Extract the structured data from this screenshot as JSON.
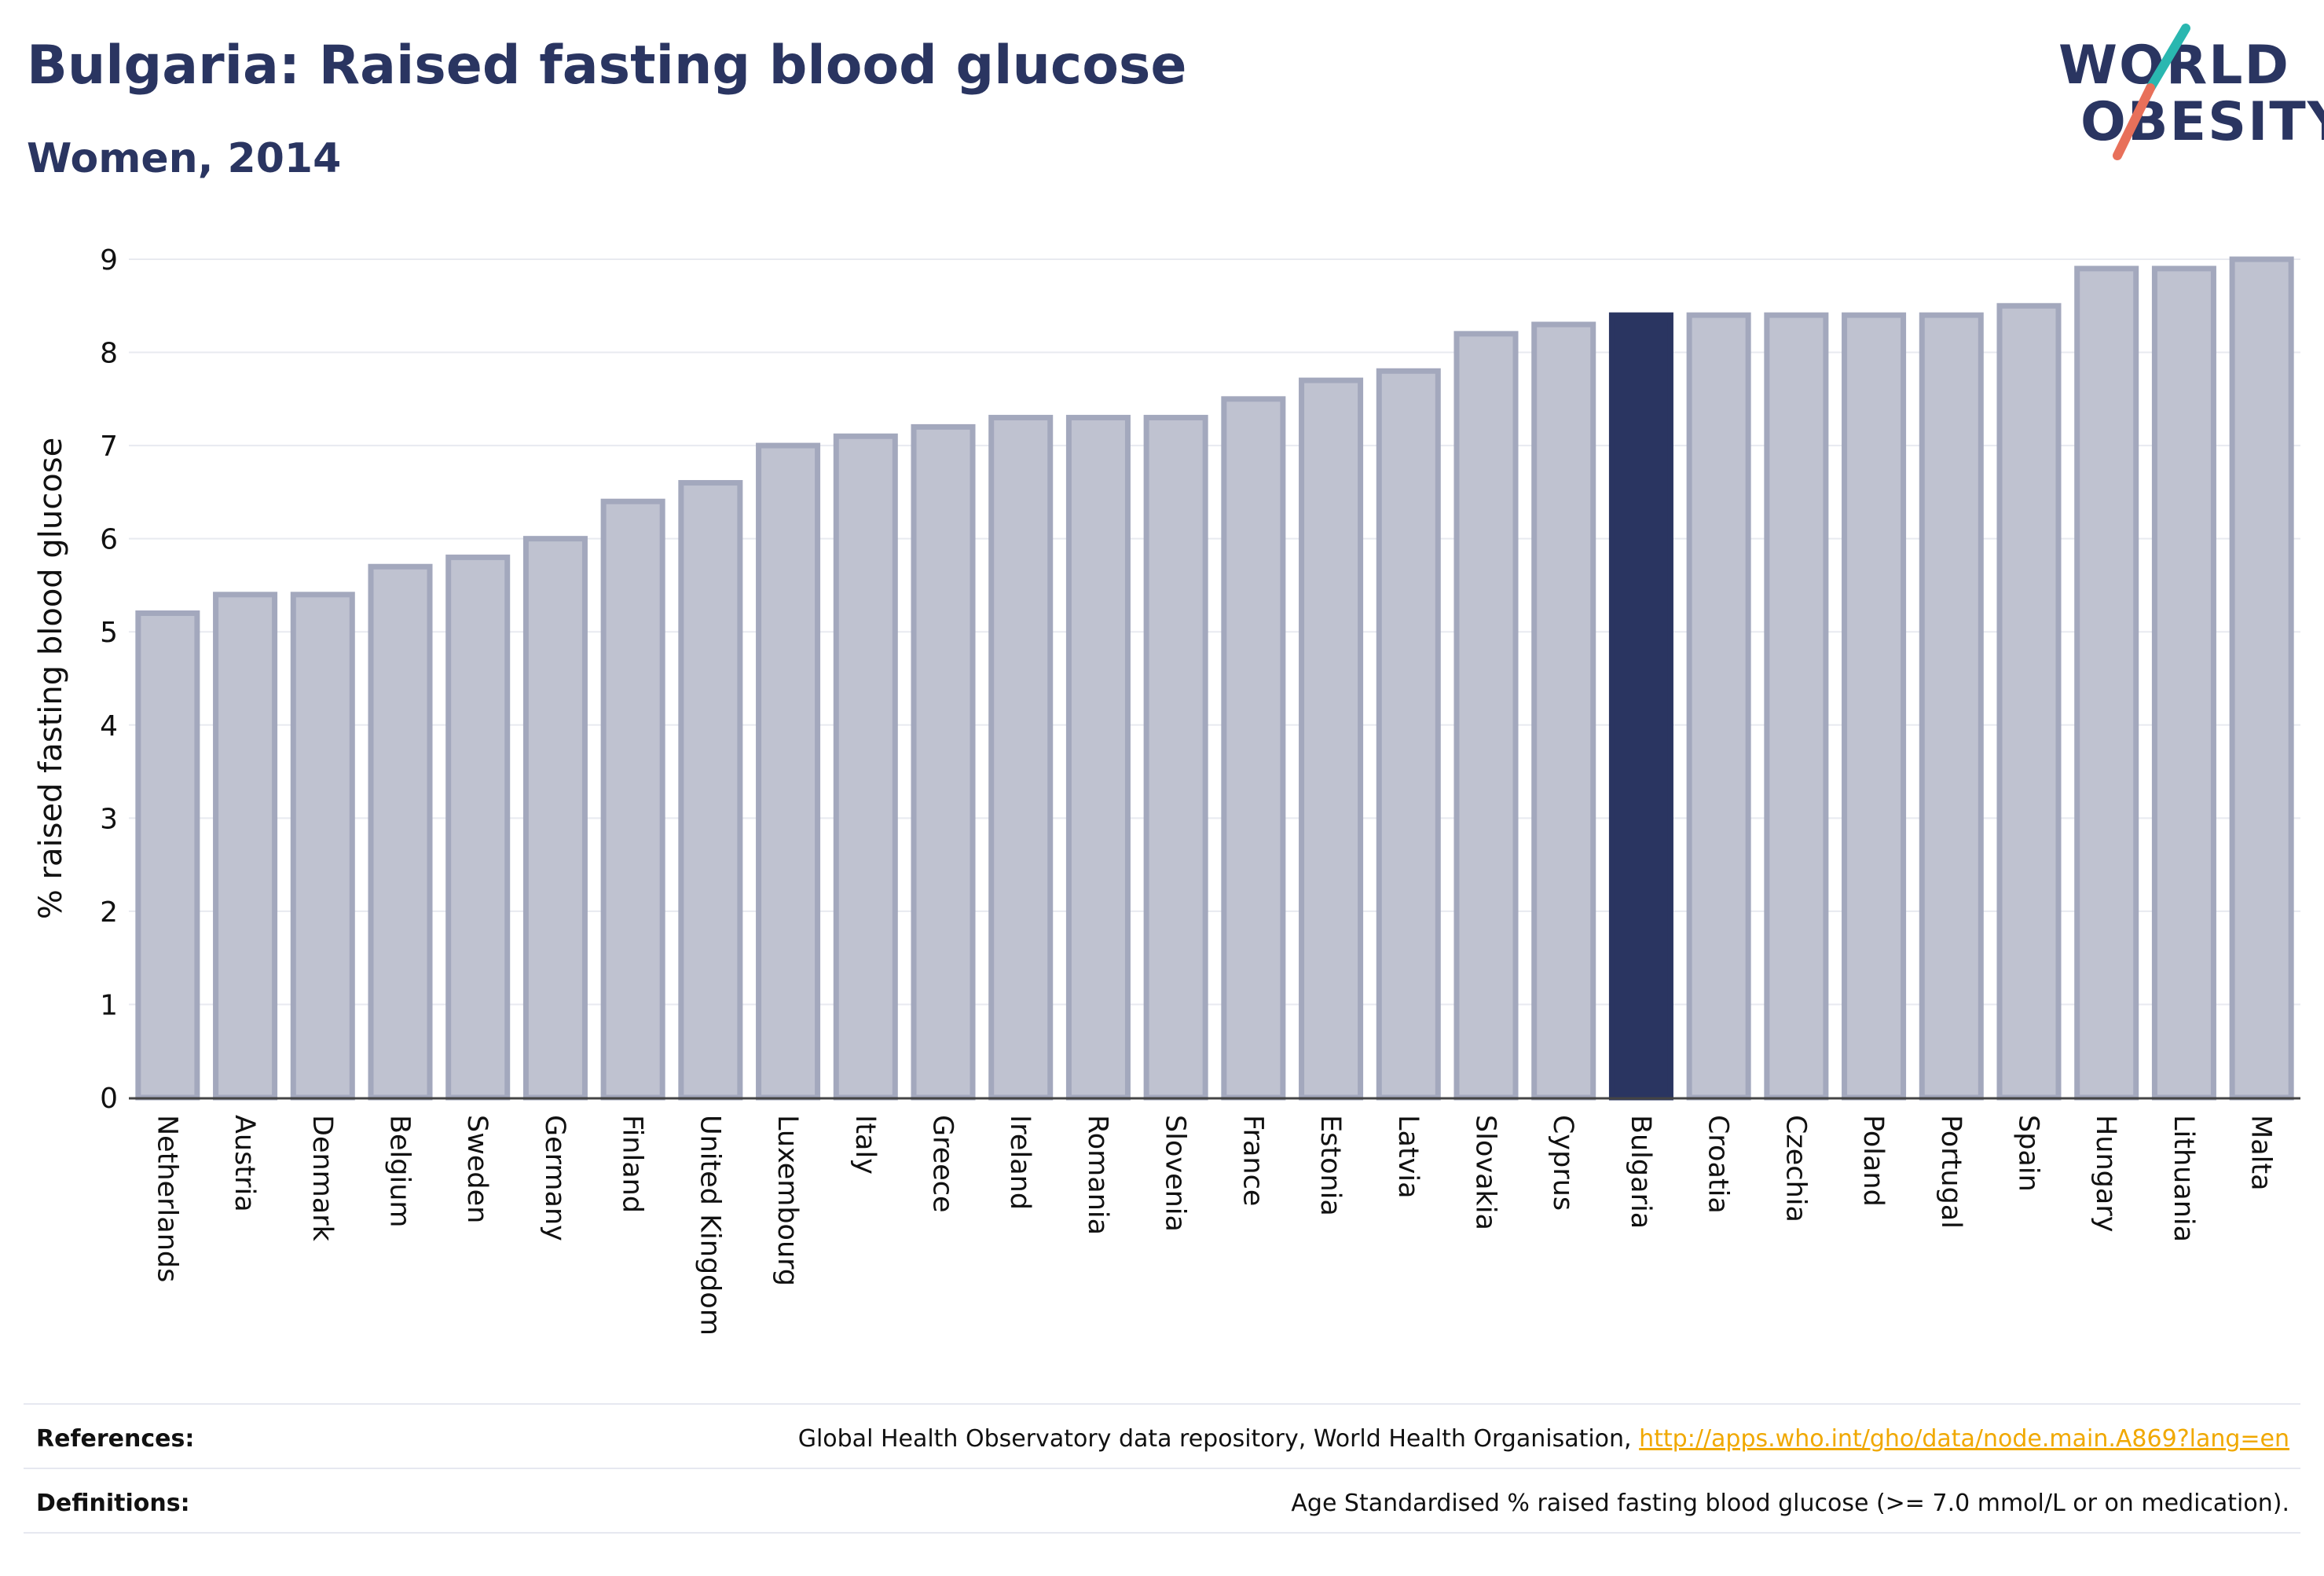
{
  "header": {
    "title": "Bulgaria: Raised fasting blood glucose",
    "subtitle": "Women, 2014"
  },
  "logo": {
    "line1": "WORLD",
    "line2": "OBESITY",
    "icon": "slash-mark-icon",
    "colors": {
      "text": "#2a3561",
      "slash_top": "#2ab7b0",
      "slash_bottom": "#e8705a"
    }
  },
  "chart_data": {
    "type": "bar",
    "ylabel": "% raised fasting blood glucose",
    "xlabel": "",
    "ylim": [
      0,
      9
    ],
    "yticks": [
      0,
      1,
      2,
      3,
      4,
      5,
      6,
      7,
      8,
      9
    ],
    "grid": true,
    "highlight": "Bulgaria",
    "colors": {
      "bar": "#bfc2d0",
      "bar_edge": "#a3a8bd",
      "highlight": "#2a3561"
    },
    "categories": [
      "Netherlands",
      "Austria",
      "Denmark",
      "Belgium",
      "Sweden",
      "Germany",
      "Finland",
      "United Kingdom",
      "Luxembourg",
      "Italy",
      "Greece",
      "Ireland",
      "Romania",
      "Slovenia",
      "France",
      "Estonia",
      "Latvia",
      "Slovakia",
      "Cyprus",
      "Bulgaria",
      "Croatia",
      "Czechia",
      "Poland",
      "Portugal",
      "Spain",
      "Hungary",
      "Lithuania",
      "Malta"
    ],
    "values": [
      5.2,
      5.4,
      5.4,
      5.7,
      5.8,
      6.0,
      6.4,
      6.6,
      7.0,
      7.1,
      7.2,
      7.3,
      7.3,
      7.3,
      7.5,
      7.7,
      7.8,
      8.2,
      8.3,
      8.4,
      8.4,
      8.4,
      8.4,
      8.4,
      8.5,
      8.9,
      8.9,
      9.0
    ]
  },
  "footer": {
    "references_label": "References:",
    "references_text": "Global Health Observatory data repository, World Health Organisation,",
    "references_link": "http://apps.who.int/gho/data/node.main.A869?lang=en",
    "definitions_label": "Definitions:",
    "definitions_text": "Age Standardised % raised fasting blood glucose (>= 7.0 mmol/L or on medication)."
  }
}
